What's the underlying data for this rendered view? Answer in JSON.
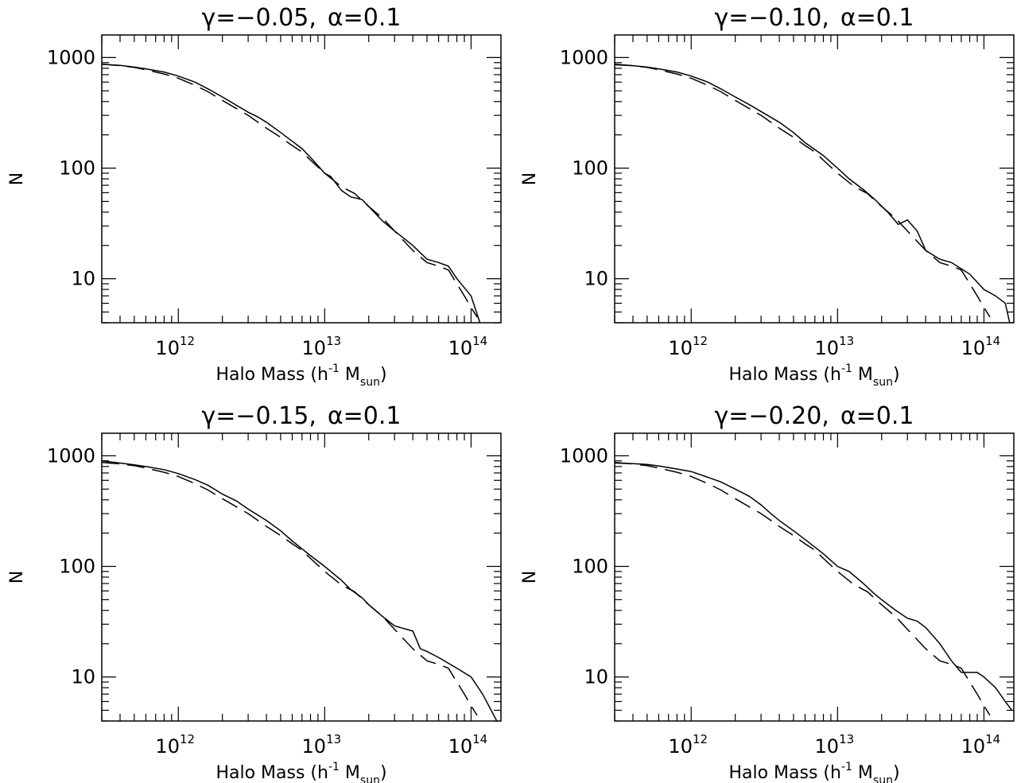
{
  "figure": {
    "xlabel": {
      "main": "Halo Mass (h",
      "exp": "-1",
      "mid": " M",
      "sub": "sun",
      "end": ")"
    },
    "ylabel": "N",
    "xtick_base": "10",
    "xtick_exponents": [
      "12",
      "13",
      "14"
    ],
    "ytick_labels": [
      "1000",
      "100",
      "10"
    ]
  },
  "chart_data": [
    {
      "type": "line",
      "title": {
        "gamma": "γ=−0.05,",
        "alpha": "α=0.1"
      },
      "xscale": "log",
      "yscale": "log",
      "xlim": [
        300000000000.0,
        160000000000000.0
      ],
      "ylim": [
        4,
        1600
      ],
      "series": [
        {
          "style": "solid",
          "x": [
            300000000000.0,
            400000000000.0,
            500000000000.0,
            600000000000.0,
            800000000000.0,
            1000000000000.0,
            1300000000000.0,
            1600000000000.0,
            2000000000000.0,
            2500000000000.0,
            3000000000000.0,
            3500000000000.0,
            4000000000000.0,
            5000000000000.0,
            6000000000000.0,
            7000000000000.0,
            8000000000000.0,
            10000000000000.0,
            11000000000000.0,
            13000000000000.0,
            15000000000000.0,
            18000000000000.0,
            20000000000000.0,
            25000000000000.0,
            30000000000000.0,
            40000000000000.0,
            50000000000000.0,
            60000000000000.0,
            70000000000000.0,
            80000000000000.0,
            100000000000000.0,
            115000000000000.0
          ],
          "y": [
            870,
            850,
            820,
            790,
            740,
            680,
            600,
            520,
            440,
            370,
            320,
            290,
            260,
            210,
            175,
            150,
            125,
            90,
            84,
            63,
            55,
            52,
            45,
            33,
            27,
            20,
            15,
            14,
            13,
            10,
            7,
            4
          ]
        },
        {
          "style": "dashed",
          "x": [
            300000000000.0,
            400000000000.0,
            500000000000.0,
            600000000000.0,
            800000000000.0,
            1000000000000.0,
            1300000000000.0,
            1600000000000.0,
            2000000000000.0,
            2500000000000.0,
            3000000000000.0,
            4000000000000.0,
            5000000000000.0,
            6000000000000.0,
            7000000000000.0,
            8000000000000.0,
            10000000000000.0,
            13000000000000.0,
            16000000000000.0,
            20000000000000.0,
            25000000000000.0,
            30000000000000.0,
            40000000000000.0,
            50000000000000.0,
            60000000000000.0,
            70000000000000.0,
            80000000000000.0,
            90000000000000.0,
            100000000000000.0,
            110000000000000.0
          ],
          "y": [
            870,
            845,
            815,
            775,
            710,
            650,
            560,
            490,
            410,
            345,
            300,
            230,
            190,
            160,
            140,
            118,
            90,
            68,
            59,
            45,
            35,
            27,
            18,
            14,
            13,
            12,
            9,
            7,
            5.5,
            4.5
          ]
        }
      ]
    },
    {
      "type": "line",
      "title": {
        "gamma": "γ=−0.10,",
        "alpha": "α=0.1"
      },
      "xscale": "log",
      "yscale": "log",
      "xlim": [
        300000000000.0,
        160000000000000.0
      ],
      "ylim": [
        4,
        1600
      ],
      "series": [
        {
          "style": "solid",
          "x": [
            300000000000.0,
            400000000000.0,
            500000000000.0,
            600000000000.0,
            800000000000.0,
            1000000000000.0,
            1300000000000.0,
            1600000000000.0,
            2000000000000.0,
            2500000000000.0,
            3000000000000.0,
            4000000000000.0,
            5000000000000.0,
            6000000000000.0,
            8000000000000.0,
            10000000000000.0,
            12000000000000.0,
            15000000000000.0,
            18000000000000.0,
            22000000000000.0,
            26000000000000.0,
            30000000000000.0,
            35000000000000.0,
            40000000000000.0,
            50000000000000.0,
            60000000000000.0,
            80000000000000.0,
            100000000000000.0,
            120000000000000.0,
            140000000000000.0,
            150000000000000.0
          ],
          "y": [
            860,
            845,
            820,
            790,
            740,
            680,
            600,
            520,
            440,
            375,
            325,
            260,
            210,
            170,
            130,
            100,
            80,
            64,
            52,
            40,
            31,
            34,
            27,
            18,
            15,
            14,
            11,
            8,
            7,
            6,
            4
          ]
        },
        {
          "style": "dashed",
          "x": [
            300000000000.0,
            400000000000.0,
            500000000000.0,
            600000000000.0,
            800000000000.0,
            1000000000000.0,
            1300000000000.0,
            1600000000000.0,
            2000000000000.0,
            2500000000000.0,
            3000000000000.0,
            4000000000000.0,
            5000000000000.0,
            6000000000000.0,
            7000000000000.0,
            8000000000000.0,
            10000000000000.0,
            13000000000000.0,
            16000000000000.0,
            20000000000000.0,
            25000000000000.0,
            30000000000000.0,
            40000000000000.0,
            50000000000000.0,
            60000000000000.0,
            70000000000000.0,
            80000000000000.0,
            90000000000000.0,
            100000000000000.0,
            110000000000000.0
          ],
          "y": [
            870,
            845,
            815,
            775,
            710,
            650,
            560,
            490,
            410,
            345,
            300,
            230,
            190,
            160,
            140,
            118,
            90,
            68,
            59,
            45,
            35,
            27,
            18,
            14,
            13,
            12,
            9,
            7,
            5.5,
            4.5
          ]
        }
      ]
    },
    {
      "type": "line",
      "title": {
        "gamma": "γ=−0.15,",
        "alpha": "α=0.1"
      },
      "xscale": "log",
      "yscale": "log",
      "xlim": [
        300000000000.0,
        160000000000000.0
      ],
      "ylim": [
        4,
        1600
      ],
      "series": [
        {
          "style": "solid",
          "x": [
            300000000000.0,
            400000000000.0,
            500000000000.0,
            600000000000.0,
            800000000000.0,
            1000000000000.0,
            1300000000000.0,
            1600000000000.0,
            2000000000000.0,
            2500000000000.0,
            3000000000000.0,
            4000000000000.0,
            5000000000000.0,
            6000000000000.0,
            8000000000000.0,
            10000000000000.0,
            13000000000000.0,
            15000000000000.0,
            18000000000000.0,
            20000000000000.0,
            25000000000000.0,
            30000000000000.0,
            40000000000000.0,
            45000000000000.0,
            50000000000000.0,
            60000000000000.0,
            80000000000000.0,
            100000000000000.0,
            120000000000000.0,
            150000000000000.0
          ],
          "y": [
            900,
            860,
            830,
            800,
            750,
            690,
            610,
            540,
            450,
            390,
            330,
            260,
            210,
            170,
            125,
            100,
            75,
            62,
            52,
            45,
            35,
            29,
            26,
            18,
            17,
            15,
            12,
            10,
            7,
            4
          ]
        },
        {
          "style": "dashed",
          "x": [
            300000000000.0,
            400000000000.0,
            500000000000.0,
            600000000000.0,
            800000000000.0,
            1000000000000.0,
            1300000000000.0,
            1600000000000.0,
            2000000000000.0,
            2500000000000.0,
            3000000000000.0,
            4000000000000.0,
            5000000000000.0,
            6000000000000.0,
            7000000000000.0,
            8000000000000.0,
            10000000000000.0,
            13000000000000.0,
            16000000000000.0,
            20000000000000.0,
            25000000000000.0,
            30000000000000.0,
            40000000000000.0,
            50000000000000.0,
            60000000000000.0,
            70000000000000.0,
            80000000000000.0,
            90000000000000.0,
            100000000000000.0,
            110000000000000.0
          ],
          "y": [
            870,
            845,
            815,
            775,
            710,
            650,
            560,
            490,
            410,
            345,
            300,
            230,
            190,
            160,
            140,
            118,
            90,
            68,
            59,
            45,
            35,
            27,
            18,
            14,
            13,
            12,
            9,
            7,
            5.5,
            4.5
          ]
        }
      ]
    },
    {
      "type": "line",
      "title": {
        "gamma": "γ=−0.20,",
        "alpha": "α=0.1"
      },
      "xscale": "log",
      "yscale": "log",
      "xlim": [
        300000000000.0,
        160000000000000.0
      ],
      "ylim": [
        4,
        1600
      ],
      "series": [
        {
          "style": "solid",
          "x": [
            300000000000.0,
            400000000000.0,
            500000000000.0,
            600000000000.0,
            800000000000.0,
            1000000000000.0,
            1300000000000.0,
            1600000000000.0,
            2000000000000.0,
            2500000000000.0,
            3000000000000.0,
            3500000000000.0,
            4000000000000.0,
            5000000000000.0,
            6000000000000.0,
            8000000000000.0,
            10000000000000.0,
            12000000000000.0,
            15000000000000.0,
            18000000000000.0,
            20000000000000.0,
            25000000000000.0,
            30000000000000.0,
            35000000000000.0,
            40000000000000.0,
            50000000000000.0,
            60000000000000.0,
            70000000000000.0,
            80000000000000.0,
            90000000000000.0,
            100000000000000.0,
            120000000000000.0,
            140000000000000.0,
            155000000000000.0
          ],
          "y": [
            860,
            850,
            835,
            810,
            760,
            720,
            640,
            580,
            500,
            430,
            360,
            300,
            260,
            210,
            175,
            130,
            100,
            90,
            70,
            56,
            50,
            40,
            34,
            32,
            28,
            20,
            14,
            11,
            11,
            11,
            10,
            8,
            6,
            5
          ]
        },
        {
          "style": "dashed",
          "x": [
            300000000000.0,
            400000000000.0,
            500000000000.0,
            600000000000.0,
            800000000000.0,
            1000000000000.0,
            1300000000000.0,
            1600000000000.0,
            2000000000000.0,
            2500000000000.0,
            3000000000000.0,
            4000000000000.0,
            5000000000000.0,
            6000000000000.0,
            7000000000000.0,
            8000000000000.0,
            10000000000000.0,
            13000000000000.0,
            16000000000000.0,
            20000000000000.0,
            25000000000000.0,
            30000000000000.0,
            40000000000000.0,
            50000000000000.0,
            60000000000000.0,
            70000000000000.0,
            80000000000000.0,
            90000000000000.0,
            100000000000000.0,
            110000000000000.0
          ],
          "y": [
            870,
            845,
            815,
            775,
            710,
            650,
            560,
            490,
            410,
            345,
            300,
            230,
            190,
            160,
            140,
            118,
            90,
            68,
            59,
            45,
            35,
            27,
            18,
            14,
            13,
            12,
            9,
            7,
            5.5,
            4.5
          ]
        }
      ]
    }
  ]
}
